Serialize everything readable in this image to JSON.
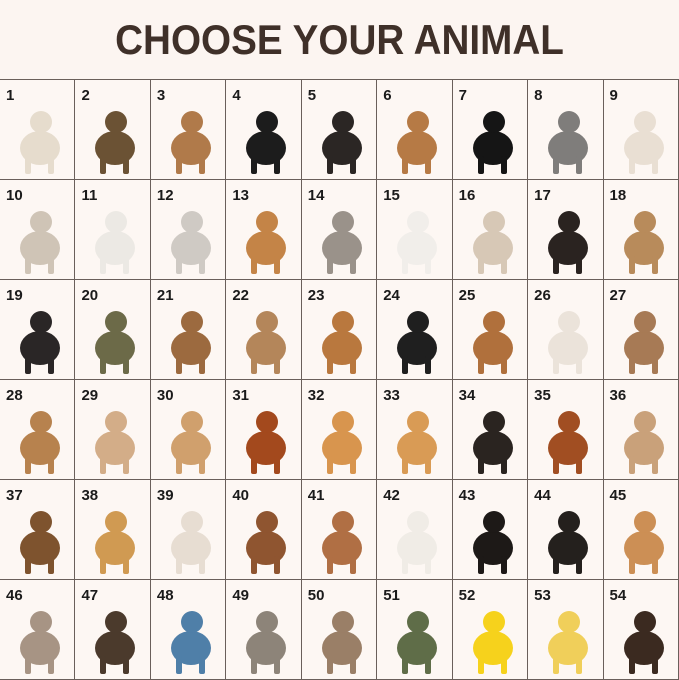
{
  "title": "CHOOSE YOUR ANIMAL",
  "cells": [
    {
      "number": "1",
      "icon": "alpaca-icon",
      "color": "#e6dccd"
    },
    {
      "number": "2",
      "icon": "brown-bear-standing-icon",
      "color": "#6b5234"
    },
    {
      "number": "3",
      "icon": "brown-bear-icon",
      "color": "#b07a4a"
    },
    {
      "number": "4",
      "icon": "black-panther-icon",
      "color": "#1c1c1c"
    },
    {
      "number": "5",
      "icon": "buffalo-icon",
      "color": "#2b2624"
    },
    {
      "number": "6",
      "icon": "camel-icon",
      "color": "#b67a45"
    },
    {
      "number": "7",
      "icon": "black-cat-icon",
      "color": "#151515"
    },
    {
      "number": "8",
      "icon": "gray-cat-icon",
      "color": "#7f7d7b"
    },
    {
      "number": "9",
      "icon": "calico-cat-icon",
      "color": "#e9dfd3"
    },
    {
      "number": "10",
      "icon": "tabby-white-cat-icon",
      "color": "#cfc4b6"
    },
    {
      "number": "11",
      "icon": "white-persian-cat-icon",
      "color": "#ece9e4"
    },
    {
      "number": "12",
      "icon": "silver-persian-cat-icon",
      "color": "#cfcac4"
    },
    {
      "number": "13",
      "icon": "orange-persian-cat-icon",
      "color": "#c48447"
    },
    {
      "number": "14",
      "icon": "gray-tabby-cat-icon",
      "color": "#9a928a"
    },
    {
      "number": "15",
      "icon": "white-cat-icon",
      "color": "#f1eeea"
    },
    {
      "number": "16",
      "icon": "siamese-cat-icon",
      "color": "#d7c8b6"
    },
    {
      "number": "17",
      "icon": "chimpanzee-icon",
      "color": "#2a2320"
    },
    {
      "number": "18",
      "icon": "cougar-icon",
      "color": "#b88b5b"
    },
    {
      "number": "19",
      "icon": "cow-icon",
      "color": "#2a2626"
    },
    {
      "number": "20",
      "icon": "crocodile-icon",
      "color": "#6c6a48"
    },
    {
      "number": "21",
      "icon": "reindeer-icon",
      "color": "#9c6a3f"
    },
    {
      "number": "22",
      "icon": "deer-icon",
      "color": "#b4865a"
    },
    {
      "number": "23",
      "icon": "beagle-icon",
      "color": "#b9783e"
    },
    {
      "number": "24",
      "icon": "border-collie-icon",
      "color": "#1f1f1f"
    },
    {
      "number": "25",
      "icon": "boxer-icon",
      "color": "#b0703c"
    },
    {
      "number": "26",
      "icon": "white-bulldog-icon",
      "color": "#ebe3da"
    },
    {
      "number": "27",
      "icon": "english-bulldog-icon",
      "color": "#a77a55"
    },
    {
      "number": "28",
      "icon": "bullmastiff-icon",
      "color": "#b7824e"
    },
    {
      "number": "29",
      "icon": "bulldog-icon",
      "color": "#d3ad88"
    },
    {
      "number": "30",
      "icon": "chihuahua-icon",
      "color": "#d0a06d"
    },
    {
      "number": "31",
      "icon": "cocker-spaniel-icon",
      "color": "#a3491d"
    },
    {
      "number": "32",
      "icon": "corgi-back-icon",
      "color": "#d8954e"
    },
    {
      "number": "33",
      "icon": "corgi-icon",
      "color": "#d99b55"
    },
    {
      "number": "34",
      "icon": "tricolor-corgi-icon",
      "color": "#2a2420"
    },
    {
      "number": "35",
      "icon": "dachshund-icon",
      "color": "#a14e22"
    },
    {
      "number": "36",
      "icon": "french-bulldog-icon",
      "color": "#c9a17a"
    },
    {
      "number": "37",
      "icon": "german-shepherd-icon",
      "color": "#7e532e"
    },
    {
      "number": "38",
      "icon": "golden-retriever-icon",
      "color": "#d09a52"
    },
    {
      "number": "39",
      "icon": "jack-russell-icon",
      "color": "#e7ddd2"
    },
    {
      "number": "40",
      "icon": "goldendoodle-icon",
      "color": "#8f5530"
    },
    {
      "number": "41",
      "icon": "brown-poodle-icon",
      "color": "#b06f44"
    },
    {
      "number": "42",
      "icon": "white-poodle-icon",
      "color": "#f0ece6"
    },
    {
      "number": "43",
      "icon": "rottweiler-icon",
      "color": "#1d1917"
    },
    {
      "number": "44",
      "icon": "black-shiba-inu-icon",
      "color": "#24201d"
    },
    {
      "number": "45",
      "icon": "shiba-inu-icon",
      "color": "#cc8f55"
    },
    {
      "number": "46",
      "icon": "weimaraner-icon",
      "color": "#a79484"
    },
    {
      "number": "47",
      "icon": "yorkshire-terrier-icon",
      "color": "#4b3a2c"
    },
    {
      "number": "48",
      "icon": "dolphin-icon",
      "color": "#4f7fa8"
    },
    {
      "number": "49",
      "icon": "donkey-icon",
      "color": "#8d8479"
    },
    {
      "number": "50",
      "icon": "brown-donkey-icon",
      "color": "#9a7f67"
    },
    {
      "number": "51",
      "icon": "dragon-icon",
      "color": "#5f6d48"
    },
    {
      "number": "52",
      "icon": "rubber-duck-icon",
      "color": "#f6d21c"
    },
    {
      "number": "53",
      "icon": "duckling-icon",
      "color": "#f0cf5a"
    },
    {
      "number": "54",
      "icon": "bald-eagle-icon",
      "color": "#3b2a20"
    }
  ]
}
